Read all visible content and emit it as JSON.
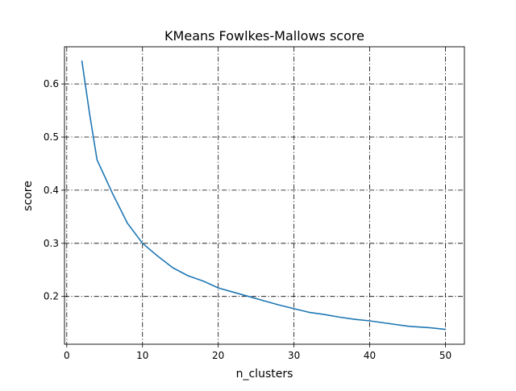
{
  "chart_data": {
    "type": "line",
    "title": "KMeans Fowlkes-Mallows score",
    "xlabel": "n_clusters",
    "ylabel": "score",
    "xlim": [
      -0.3,
      52.5
    ],
    "ylim": [
      0.11,
      0.67
    ],
    "xticks": [
      0,
      10,
      20,
      30,
      40,
      50
    ],
    "xtick_labels": [
      "0",
      "10",
      "20",
      "30",
      "40",
      "50"
    ],
    "yticks": [
      0.2,
      0.3,
      0.4,
      0.5,
      0.6
    ],
    "ytick_labels": [
      "0.2",
      "0.3",
      "0.4",
      "0.5",
      "0.6"
    ],
    "grid": true,
    "grid_style": "dashdot",
    "series": [
      {
        "color": "#1f77b4",
        "x": [
          2,
          3,
          4,
          6,
          8,
          10,
          12,
          14,
          16,
          18,
          20,
          22,
          24,
          26,
          28,
          30,
          32,
          34,
          36,
          38,
          40,
          42,
          45,
          48,
          50
        ],
        "y": [
          0.643,
          0.545,
          0.457,
          0.395,
          0.338,
          0.3,
          0.276,
          0.254,
          0.239,
          0.229,
          0.216,
          0.208,
          0.2,
          0.192,
          0.184,
          0.177,
          0.17,
          0.166,
          0.161,
          0.157,
          0.154,
          0.15,
          0.144,
          0.141,
          0.138
        ]
      }
    ]
  }
}
